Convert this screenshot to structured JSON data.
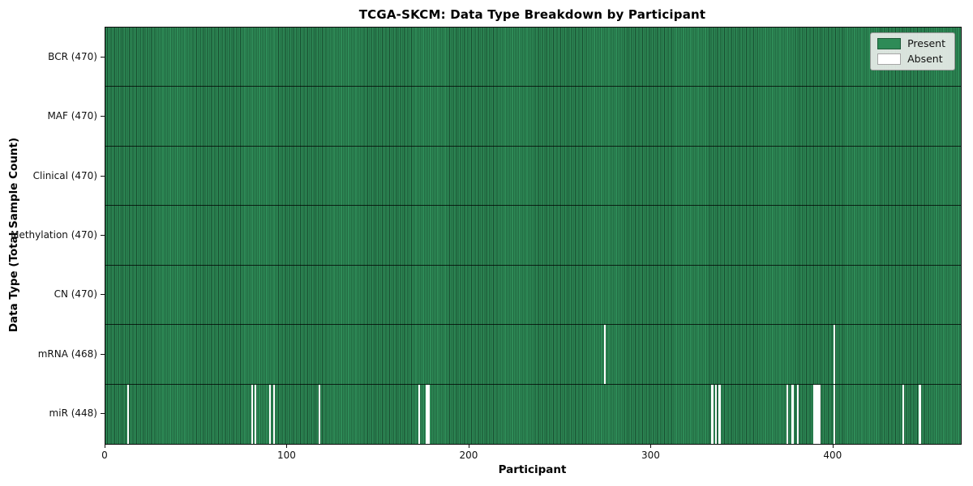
{
  "chart_data": {
    "type": "heatmap",
    "title": "TCGA-SKCM: Data Type Breakdown by Participant",
    "xlabel": "Participant",
    "ylabel": "Data Type (Total Sample Count)",
    "x_ticks": [
      0,
      100,
      200,
      300,
      400
    ],
    "x_range": [
      0,
      470
    ],
    "n_participants": 470,
    "legend": [
      {
        "label": "Present",
        "color": "#2e8b57"
      },
      {
        "label": "Absent",
        "color": "#ffffff"
      }
    ],
    "legend_position": "upper right",
    "grid": "row-separators",
    "rows": [
      {
        "label": "BCR (470)",
        "name": "BCR",
        "present_count": 470,
        "absent_participants": []
      },
      {
        "label": "MAF (470)",
        "name": "MAF",
        "present_count": 470,
        "absent_participants": []
      },
      {
        "label": "Clinical (470)",
        "name": "Clinical",
        "present_count": 470,
        "absent_participants": []
      },
      {
        "label": "Methylation (470)",
        "name": "Methylation",
        "present_count": 470,
        "absent_participants": []
      },
      {
        "label": "CN (470)",
        "name": "CN",
        "present_count": 470,
        "absent_participants": []
      },
      {
        "label": "mRNA (468)",
        "name": "mRNA",
        "present_count": 468,
        "absent_participants": [
          274,
          400
        ]
      },
      {
        "label": "miR (448)",
        "name": "miR",
        "present_count": 448,
        "absent_participants": [
          12,
          80,
          82,
          90,
          92,
          117,
          172,
          176,
          177,
          333,
          335,
          337,
          374,
          377,
          380,
          389,
          390,
          391,
          392,
          400,
          438,
          447
        ]
      }
    ],
    "colors": {
      "present": "#2e8b57",
      "absent": "#ffffff",
      "bar_edge": "#0a2012",
      "axis": "#0d0d0d",
      "legend_bg": "#e9ede9"
    }
  }
}
